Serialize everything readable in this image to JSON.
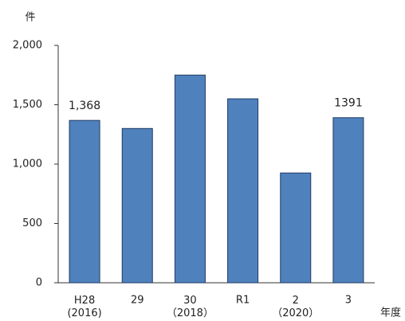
{
  "chart_data": {
    "type": "bar",
    "y_label": "件",
    "x_label": "年度",
    "categories": [
      "H28\n(2016)",
      "29",
      "30\n（2018）",
      "R1",
      "2\n（2020）",
      "3"
    ],
    "values": [
      1368,
      1300,
      1750,
      1550,
      925,
      1391
    ],
    "value_labels": [
      "1,368",
      null,
      null,
      null,
      null,
      "1391"
    ],
    "color": "#4f81bd",
    "ylim": [
      0,
      2000
    ],
    "yticks": [
      0,
      500,
      {
        "value": 1000,
        "label": "1,000"
      },
      {
        "value": 1500,
        "label": "1,500"
      },
      {
        "value": 2000,
        "label": "2,000"
      }
    ],
    "grid": false
  }
}
